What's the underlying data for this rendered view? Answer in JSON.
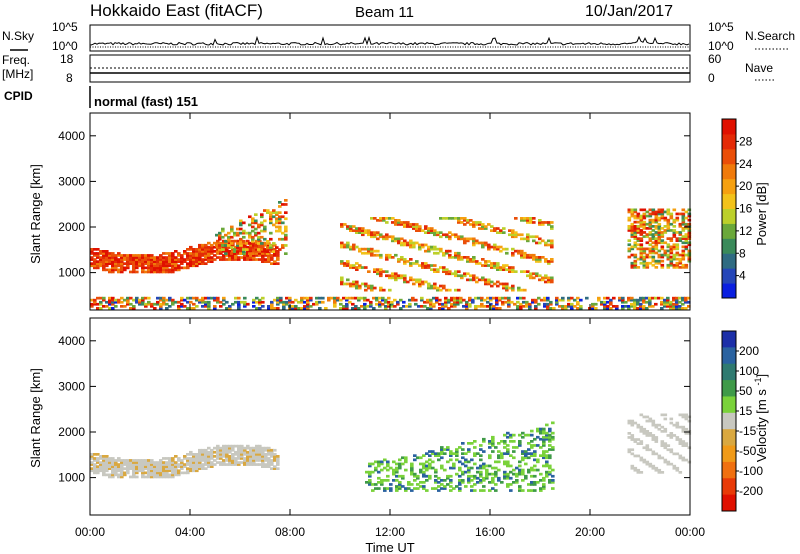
{
  "header": {
    "title": "Hokkaido East (fitACF)",
    "beam": "Beam 11",
    "date": "10/Jan/2017"
  },
  "left_labels": {
    "nsky": "N.Sky",
    "freq": "Freq.",
    "freq_unit": "[MHz]",
    "cpid": "CPID"
  },
  "right_labels": {
    "nsearch": "N.Search",
    "nave": "Nave"
  },
  "noise_panel": {
    "left_ticks": [
      "10^5",
      "10^0"
    ],
    "right_ticks": [
      "10^5",
      "10^0"
    ]
  },
  "freq_panel": {
    "left_ticks": [
      "18",
      "8"
    ],
    "right_ticks": [
      "60",
      "0"
    ]
  },
  "cpid_text": "normal (fast) 151",
  "chart_data": [
    {
      "type": "heatmap",
      "name": "power",
      "ylabel": "Slant Range [km]",
      "xlabel": "Time UT",
      "x_ticks": [
        "00:00",
        "04:00",
        "08:00",
        "12:00",
        "16:00",
        "20:00",
        "00:00"
      ],
      "x_range_hours": [
        0,
        24
      ],
      "y_range_km": [
        180,
        4500
      ],
      "y_ticks": [
        1000,
        2000,
        3000,
        4000
      ],
      "colorbar": {
        "label": "Power [dB]",
        "ticks": [
          4,
          8,
          12,
          16,
          20,
          24,
          28
        ],
        "range": [
          0,
          32
        ],
        "colors": [
          "#0a1fe0",
          "#2546b8",
          "#2f6b82",
          "#3a8a5a",
          "#6aa83a",
          "#bcd02a",
          "#f2c21a",
          "#f5a010",
          "#f07a0a",
          "#ea4e08",
          "#e42a06",
          "#e01000"
        ]
      },
      "features": [
        {
          "t_start": 0.0,
          "t_end": 7.5,
          "range_start_km": 1000,
          "range_end_km": 1700,
          "note": "strong echo band"
        },
        {
          "t_start": 5.0,
          "t_end": 7.8,
          "range_start_km": 1400,
          "range_end_km": 2600
        },
        {
          "t_start": 10.0,
          "t_end": 18.5,
          "range_start_km": 600,
          "range_end_km": 2200,
          "note": "descending striations"
        },
        {
          "t_start": 21.5,
          "t_end": 24.0,
          "range_start_km": 1100,
          "range_end_km": 2400
        },
        {
          "t_start": 0.0,
          "t_end": 24.0,
          "range_start_km": 200,
          "range_end_km": 450,
          "note": "near-range echoes"
        }
      ]
    },
    {
      "type": "heatmap",
      "name": "velocity",
      "ylabel": "Slant Range [km]",
      "xlabel": "Time UT",
      "x_ticks": [
        "00:00",
        "04:00",
        "08:00",
        "12:00",
        "16:00",
        "20:00",
        "00:00"
      ],
      "x_range_hours": [
        0,
        24
      ],
      "y_range_km": [
        180,
        4500
      ],
      "y_ticks": [
        1000,
        2000,
        3000,
        4000
      ],
      "colorbar": {
        "label": "Velocity [m s^-1]",
        "ticks": [
          "200",
          "100",
          "50",
          "15",
          "-15",
          "-50",
          "-100",
          "-200"
        ],
        "colors": [
          "#1c2fa8",
          "#2a62a0",
          "#2f7a70",
          "#3f9a48",
          "#7ad23a",
          "#c8c8c0",
          "#d9a840",
          "#f09a18",
          "#f07010",
          "#e83a08",
          "#e01000"
        ]
      },
      "features": [
        {
          "t_start": 0.0,
          "t_end": 7.5,
          "range_start_km": 1000,
          "range_end_km": 1700,
          "note": "low velocity (grey)"
        },
        {
          "t_start": 11.0,
          "t_end": 18.5,
          "range_start_km": 700,
          "range_end_km": 2200,
          "note": "positive velocity streaks (green/blue)"
        },
        {
          "t_start": 21.5,
          "t_end": 24.0,
          "range_start_km": 1100,
          "range_end_km": 2400,
          "note": "low velocity (grey)"
        }
      ]
    }
  ]
}
